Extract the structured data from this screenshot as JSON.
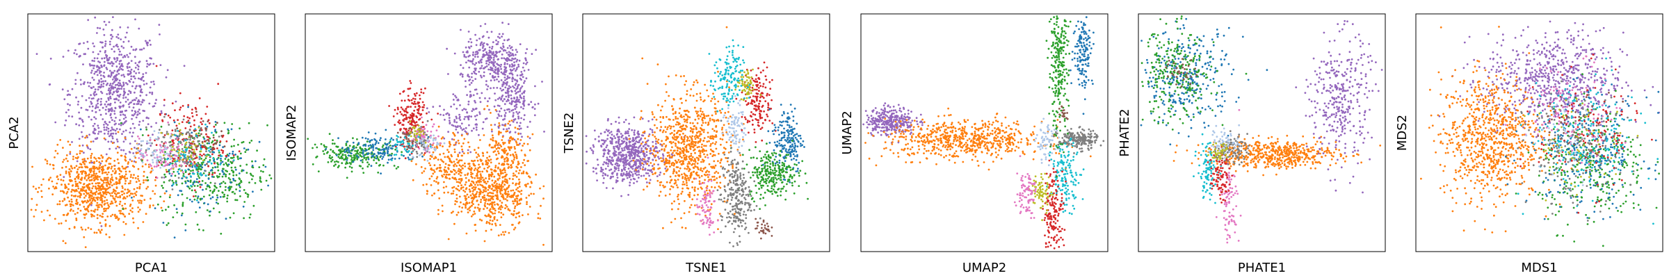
{
  "figure": {
    "colors": {
      "blue": "#1f77b4",
      "orange": "#ff7f0e",
      "green": "#2ca02c",
      "red": "#d62728",
      "purple": "#9467bd",
      "brown": "#8c564b",
      "pink": "#e377c2",
      "gray": "#7f7f7f",
      "olive": "#bcbd22",
      "cyan": "#17becf",
      "lightblue": "#aec7e8"
    }
  },
  "chart_data": [
    {
      "type": "scatter",
      "title": "",
      "xlabel": "PCA1",
      "ylabel": "PCA2",
      "ticks": "none",
      "grid": false,
      "xlim": [
        0,
        100
      ],
      "ylim": [
        0,
        100
      ],
      "clusters": [
        {
          "color": "purple",
          "cx": 35,
          "cy": 67,
          "sx": 9,
          "sy": 14,
          "n": 700
        },
        {
          "color": "orange",
          "cx": 28,
          "cy": 27,
          "sx": 10,
          "sy": 8,
          "n": 800
        },
        {
          "color": "green",
          "cx": 75,
          "cy": 33,
          "sx": 11,
          "sy": 10,
          "n": 350
        },
        {
          "color": "blue",
          "cx": 70,
          "cy": 36,
          "sx": 10,
          "sy": 10,
          "n": 150
        },
        {
          "color": "red",
          "cx": 66,
          "cy": 46,
          "sx": 7,
          "sy": 9,
          "n": 160
        },
        {
          "color": "gray",
          "cx": 60,
          "cy": 44,
          "sx": 7,
          "sy": 6,
          "n": 120
        },
        {
          "color": "pink",
          "cx": 55,
          "cy": 40,
          "sx": 5,
          "sy": 4,
          "n": 80
        },
        {
          "color": "lightblue",
          "cx": 52,
          "cy": 42,
          "sx": 4,
          "sy": 4,
          "n": 60
        },
        {
          "color": "cyan",
          "cx": 68,
          "cy": 40,
          "sx": 6,
          "sy": 6,
          "n": 60
        },
        {
          "color": "olive",
          "cx": 64,
          "cy": 43,
          "sx": 5,
          "sy": 5,
          "n": 50
        },
        {
          "color": "brown",
          "cx": 70,
          "cy": 49,
          "sx": 4,
          "sy": 4,
          "n": 30
        }
      ]
    },
    {
      "type": "scatter",
      "title": "",
      "xlabel": "ISOMAP1",
      "ylabel": "ISOMAP2",
      "ticks": "none",
      "grid": false,
      "xlim": [
        0,
        100
      ],
      "ylim": [
        0,
        100
      ],
      "clusters": [
        {
          "color": "purple",
          "cx": 75,
          "cy": 80,
          "sx": 6,
          "sy": 6,
          "n": 300
        },
        {
          "color": "purple",
          "cx": 84,
          "cy": 66,
          "sx": 4,
          "sy": 9,
          "n": 260
        },
        {
          "color": "purple",
          "cx": 64,
          "cy": 56,
          "sx": 6,
          "sy": 6,
          "n": 120
        },
        {
          "color": "orange",
          "cx": 76,
          "cy": 24,
          "sx": 8,
          "sy": 7,
          "n": 500
        },
        {
          "color": "orange",
          "cx": 60,
          "cy": 36,
          "sx": 7,
          "sy": 7,
          "n": 250
        },
        {
          "color": "orange",
          "cx": 80,
          "cy": 40,
          "sx": 5,
          "sy": 7,
          "n": 200
        },
        {
          "color": "green",
          "cx": 20,
          "cy": 41,
          "sx": 9,
          "sy": 3,
          "n": 220
        },
        {
          "color": "blue",
          "cx": 30,
          "cy": 43,
          "sx": 8,
          "sy": 3,
          "n": 140
        },
        {
          "color": "red",
          "cx": 43,
          "cy": 56,
          "sx": 3,
          "sy": 6,
          "n": 180
        },
        {
          "color": "pink",
          "cx": 48,
          "cy": 48,
          "sx": 3,
          "sy": 3,
          "n": 60
        },
        {
          "color": "gray",
          "cx": 46,
          "cy": 45,
          "sx": 3,
          "sy": 3,
          "n": 50
        },
        {
          "color": "lightblue",
          "cx": 50,
          "cy": 45,
          "sx": 3,
          "sy": 3,
          "n": 40
        },
        {
          "color": "cyan",
          "cx": 40,
          "cy": 44,
          "sx": 3,
          "sy": 3,
          "n": 40
        },
        {
          "color": "olive",
          "cx": 44,
          "cy": 50,
          "sx": 2,
          "sy": 2,
          "n": 30
        },
        {
          "color": "brown",
          "cx": 42,
          "cy": 47,
          "sx": 2,
          "sy": 2,
          "n": 20
        }
      ]
    },
    {
      "type": "scatter",
      "title": "",
      "xlabel": "TSNE1",
      "ylabel": "TSNE2",
      "ticks": "none",
      "grid": false,
      "xlim": [
        0,
        100
      ],
      "ylim": [
        0,
        100
      ],
      "clusters": [
        {
          "color": "purple",
          "cx": 18,
          "cy": 41,
          "sx": 7,
          "sy": 6,
          "n": 600
        },
        {
          "color": "orange",
          "cx": 43,
          "cy": 43,
          "sx": 8,
          "sy": 12,
          "n": 800
        },
        {
          "color": "lightblue",
          "cx": 62,
          "cy": 53,
          "sx": 2,
          "sy": 5,
          "n": 80
        },
        {
          "color": "red",
          "cx": 71,
          "cy": 63,
          "sx": 3,
          "sy": 7,
          "n": 160
        },
        {
          "color": "olive",
          "cx": 66,
          "cy": 70,
          "sx": 2,
          "sy": 3,
          "n": 60
        },
        {
          "color": "cyan",
          "cx": 59,
          "cy": 72,
          "sx": 3,
          "sy": 7,
          "n": 140
        },
        {
          "color": "blue",
          "cx": 83,
          "cy": 47,
          "sx": 3,
          "sy": 7,
          "n": 180
        },
        {
          "color": "green",
          "cx": 77,
          "cy": 33,
          "sx": 5,
          "sy": 5,
          "n": 260
        },
        {
          "color": "gray",
          "cx": 62,
          "cy": 23,
          "sx": 3,
          "sy": 9,
          "n": 240
        },
        {
          "color": "pink",
          "cx": 50,
          "cy": 18,
          "sx": 2,
          "sy": 6,
          "n": 80
        },
        {
          "color": "brown",
          "cx": 73,
          "cy": 10,
          "sx": 1.5,
          "sy": 2,
          "n": 30
        }
      ]
    },
    {
      "type": "scatter",
      "title": "",
      "xlabel": "UMAP2",
      "ylabel": "UMAP2",
      "ticks": "none",
      "grid": false,
      "xlim": [
        0,
        100
      ],
      "ylim": [
        0,
        100
      ],
      "clusters": [
        {
          "color": "purple",
          "cx": 12,
          "cy": 55,
          "sx": 5,
          "sy": 3,
          "n": 300
        },
        {
          "color": "orange",
          "cx": 42,
          "cy": 47,
          "sx": 16,
          "sy": 4,
          "n": 650
        },
        {
          "color": "gray",
          "cx": 88,
          "cy": 47,
          "sx": 4,
          "sy": 2,
          "n": 200
        },
        {
          "color": "lightblue",
          "cx": 75,
          "cy": 46,
          "sx": 2,
          "sy": 4,
          "n": 60
        },
        {
          "color": "cyan",
          "cx": 83,
          "cy": 32,
          "sx": 3,
          "sy": 7,
          "n": 140
        },
        {
          "color": "red",
          "cx": 78,
          "cy": 17,
          "sx": 2,
          "sy": 9,
          "n": 160
        },
        {
          "color": "olive",
          "cx": 73,
          "cy": 25,
          "sx": 2,
          "sy": 4,
          "n": 70
        },
        {
          "color": "pink",
          "cx": 67,
          "cy": 25,
          "sx": 2,
          "sy": 5,
          "n": 80
        },
        {
          "color": "green",
          "cx": 80,
          "cy": 78,
          "sx": 2,
          "sy": 14,
          "n": 260
        },
        {
          "color": "blue",
          "cx": 90,
          "cy": 85,
          "sx": 2,
          "sy": 8,
          "n": 140
        },
        {
          "color": "brown",
          "cx": 82,
          "cy": 58,
          "sx": 1,
          "sy": 2,
          "n": 20
        }
      ]
    },
    {
      "type": "scatter",
      "title": "",
      "xlabel": "PHATE1",
      "ylabel": "PHATE2",
      "ticks": "none",
      "grid": false,
      "xlim": [
        0,
        100
      ],
      "ylim": [
        0,
        100
      ],
      "clusters": [
        {
          "color": "blue",
          "cx": 20,
          "cy": 73,
          "sx": 9,
          "sy": 10,
          "n": 300
        },
        {
          "color": "green",
          "cx": 15,
          "cy": 74,
          "sx": 8,
          "sy": 10,
          "n": 260
        },
        {
          "color": "brown",
          "cx": 17,
          "cy": 76,
          "sx": 3,
          "sy": 3,
          "n": 30
        },
        {
          "color": "orange",
          "cx": 55,
          "cy": 41,
          "sx": 13,
          "sy": 3,
          "n": 520
        },
        {
          "color": "purple",
          "cx": 82,
          "cy": 64,
          "sx": 6,
          "sy": 14,
          "n": 340
        },
        {
          "color": "pink",
          "cx": 37,
          "cy": 21,
          "sx": 2,
          "sy": 9,
          "n": 90
        },
        {
          "color": "cyan",
          "cx": 28,
          "cy": 34,
          "sx": 2,
          "sy": 6,
          "n": 100
        },
        {
          "color": "red",
          "cx": 33,
          "cy": 32,
          "sx": 2,
          "sy": 5,
          "n": 90
        },
        {
          "color": "gray",
          "cx": 38,
          "cy": 43,
          "sx": 3,
          "sy": 3,
          "n": 90
        },
        {
          "color": "lightblue",
          "cx": 35,
          "cy": 46,
          "sx": 3,
          "sy": 3,
          "n": 60
        },
        {
          "color": "olive",
          "cx": 33,
          "cy": 42,
          "sx": 2,
          "sy": 2,
          "n": 40
        }
      ]
    },
    {
      "type": "scatter",
      "title": "",
      "xlabel": "MDS1",
      "ylabel": "MDS2",
      "ticks": "none",
      "grid": false,
      "xlim": [
        0,
        100
      ],
      "ylim": [
        0,
        100
      ],
      "clusters": [
        {
          "color": "purple",
          "cx": 56,
          "cy": 72,
          "sx": 14,
          "sy": 10,
          "n": 650
        },
        {
          "color": "orange",
          "cx": 30,
          "cy": 48,
          "sx": 10,
          "sy": 13,
          "n": 800
        },
        {
          "color": "green",
          "cx": 72,
          "cy": 35,
          "sx": 11,
          "sy": 12,
          "n": 300
        },
        {
          "color": "blue",
          "cx": 70,
          "cy": 42,
          "sx": 12,
          "sy": 12,
          "n": 260
        },
        {
          "color": "cyan",
          "cx": 68,
          "cy": 48,
          "sx": 11,
          "sy": 12,
          "n": 180
        },
        {
          "color": "red",
          "cx": 70,
          "cy": 50,
          "sx": 10,
          "sy": 12,
          "n": 120
        },
        {
          "color": "gray",
          "cx": 64,
          "cy": 42,
          "sx": 10,
          "sy": 12,
          "n": 140
        },
        {
          "color": "pink",
          "cx": 62,
          "cy": 60,
          "sx": 10,
          "sy": 10,
          "n": 90
        },
        {
          "color": "olive",
          "cx": 66,
          "cy": 45,
          "sx": 10,
          "sy": 10,
          "n": 60
        },
        {
          "color": "brown",
          "cx": 64,
          "cy": 52,
          "sx": 8,
          "sy": 8,
          "n": 40
        },
        {
          "color": "lightblue",
          "cx": 62,
          "cy": 48,
          "sx": 8,
          "sy": 8,
          "n": 40
        }
      ]
    }
  ]
}
